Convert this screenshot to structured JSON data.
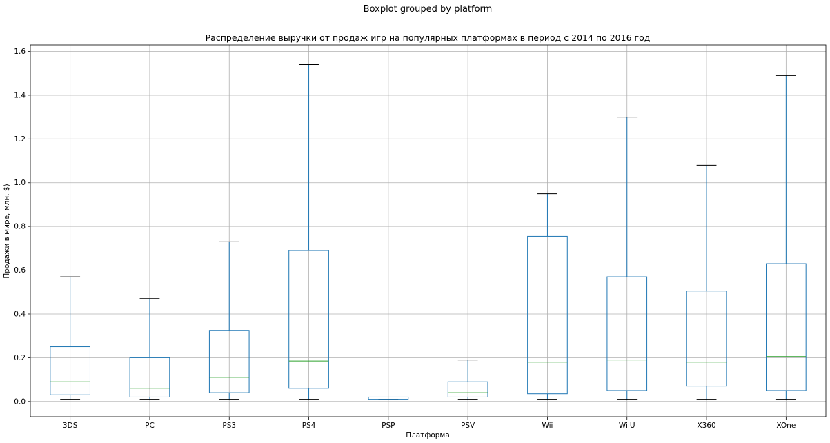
{
  "chart_data": {
    "type": "boxplot",
    "suptitle": "Boxplot grouped by platform",
    "title": "Распределение выручки от продаж игр на популярных платформах в период с 2014 по 2016 год",
    "xlabel": "Платформа",
    "ylabel": "Продажи в мире, млн. $)",
    "ylim": [
      -0.07,
      1.63
    ],
    "yticks": [
      0.0,
      0.2,
      0.4,
      0.6,
      0.8,
      1.0,
      1.2,
      1.4,
      1.6
    ],
    "ytick_labels": [
      "0.0",
      "0.2",
      "0.4",
      "0.6",
      "0.8",
      "1.0",
      "1.2",
      "1.4",
      "1.6"
    ],
    "grid": true,
    "categories": [
      "3DS",
      "PC",
      "PS3",
      "PS4",
      "PSP",
      "PSV",
      "Wii",
      "WiiU",
      "X360",
      "XOne"
    ],
    "boxes": [
      {
        "whisker_low": 0.01,
        "q1": 0.03,
        "median": 0.09,
        "q3": 0.25,
        "whisker_high": 0.57
      },
      {
        "whisker_low": 0.01,
        "q1": 0.02,
        "median": 0.06,
        "q3": 0.2,
        "whisker_high": 0.47
      },
      {
        "whisker_low": 0.01,
        "q1": 0.04,
        "median": 0.11,
        "q3": 0.325,
        "whisker_high": 0.73
      },
      {
        "whisker_low": 0.01,
        "q1": 0.06,
        "median": 0.185,
        "q3": 0.69,
        "whisker_high": 1.54
      },
      {
        "whisker_low": 0.01,
        "q1": 0.01,
        "median": 0.02,
        "q3": 0.02,
        "whisker_high": 0.02
      },
      {
        "whisker_low": 0.01,
        "q1": 0.02,
        "median": 0.04,
        "q3": 0.09,
        "whisker_high": 0.19
      },
      {
        "whisker_low": 0.01,
        "q1": 0.035,
        "median": 0.18,
        "q3": 0.755,
        "whisker_high": 0.95
      },
      {
        "whisker_low": 0.01,
        "q1": 0.05,
        "median": 0.19,
        "q3": 0.57,
        "whisker_high": 1.3
      },
      {
        "whisker_low": 0.01,
        "q1": 0.07,
        "median": 0.18,
        "q3": 0.505,
        "whisker_high": 1.08
      },
      {
        "whisker_low": 0.01,
        "q1": 0.05,
        "median": 0.205,
        "q3": 0.63,
        "whisker_high": 1.49
      }
    ]
  },
  "colors": {
    "box": "#1f77b4",
    "median": "#2ca02c",
    "cap": "#000000",
    "grid": "#b0b0b0",
    "axes": "#000000"
  }
}
